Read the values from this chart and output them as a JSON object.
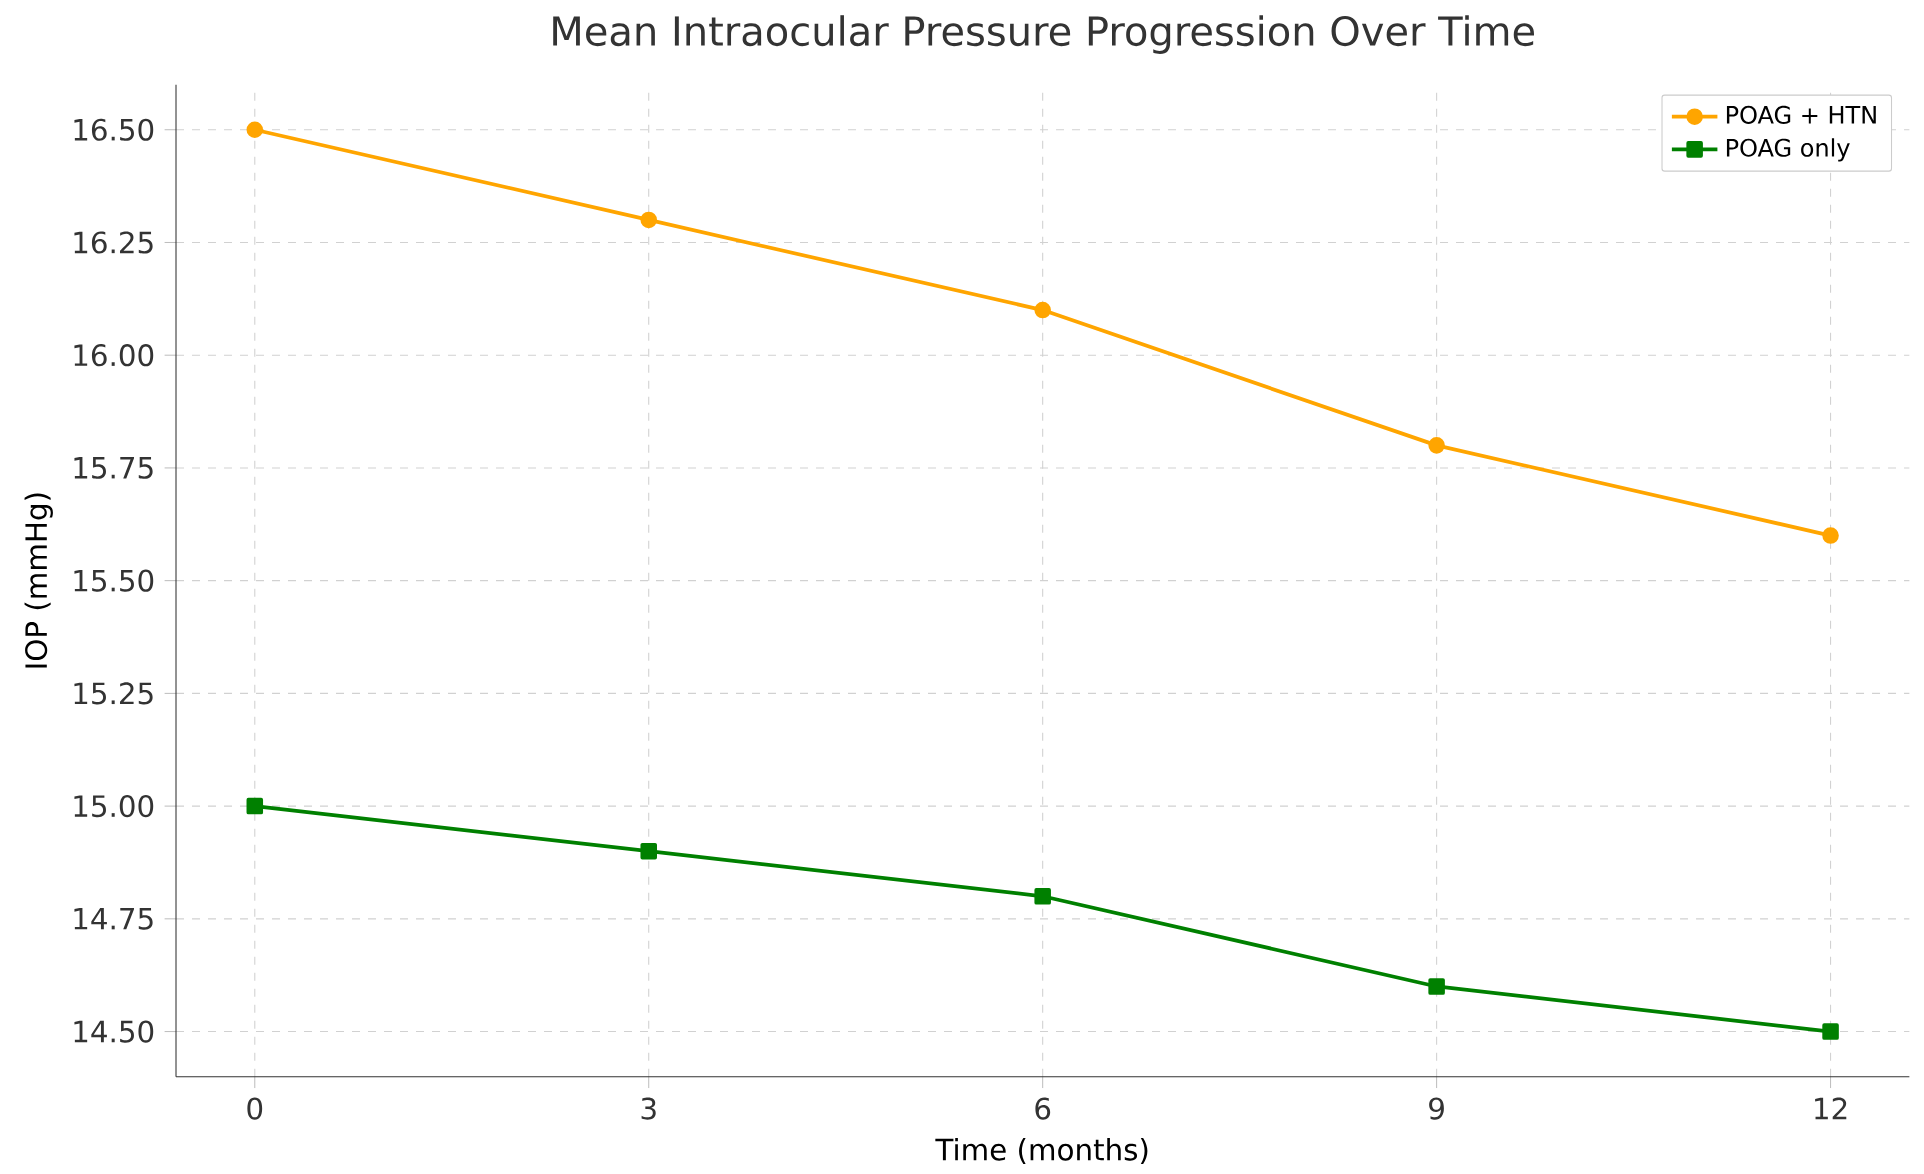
{
  "chart_data": {
    "type": "line",
    "title": "Mean Intraocular Pressure Progression Over Time",
    "xlabel": "Time (months)",
    "ylabel": "IOP (mmHg)",
    "x": [
      0,
      3,
      6,
      9,
      12
    ],
    "series": [
      {
        "name": "POAG + HTN",
        "color": "#ffa500",
        "marker": "circle",
        "values": [
          16.5,
          16.3,
          16.1,
          15.8,
          15.6
        ]
      },
      {
        "name": "POAG only",
        "color": "#008000",
        "marker": "square",
        "values": [
          15.0,
          14.9,
          14.8,
          14.6,
          14.5
        ]
      }
    ],
    "xlim": [
      -0.6,
      12.6
    ],
    "ylim": [
      14.4,
      16.6
    ],
    "xticks": [
      0,
      3,
      6,
      9,
      12
    ],
    "yticks": [
      {
        "value": 14.5,
        "label": "14.50"
      },
      {
        "value": 14.75,
        "label": "14.75"
      },
      {
        "value": 15.0,
        "label": "15.00"
      },
      {
        "value": 15.25,
        "label": "15.25"
      },
      {
        "value": 15.5,
        "label": "15.50"
      },
      {
        "value": 15.75,
        "label": "15.75"
      },
      {
        "value": 16.0,
        "label": "16.00"
      },
      {
        "value": 16.25,
        "label": "16.25"
      },
      {
        "value": 16.5,
        "label": "16.50"
      }
    ],
    "grid": true,
    "legend": "top right",
    "line_style": "solid"
  }
}
